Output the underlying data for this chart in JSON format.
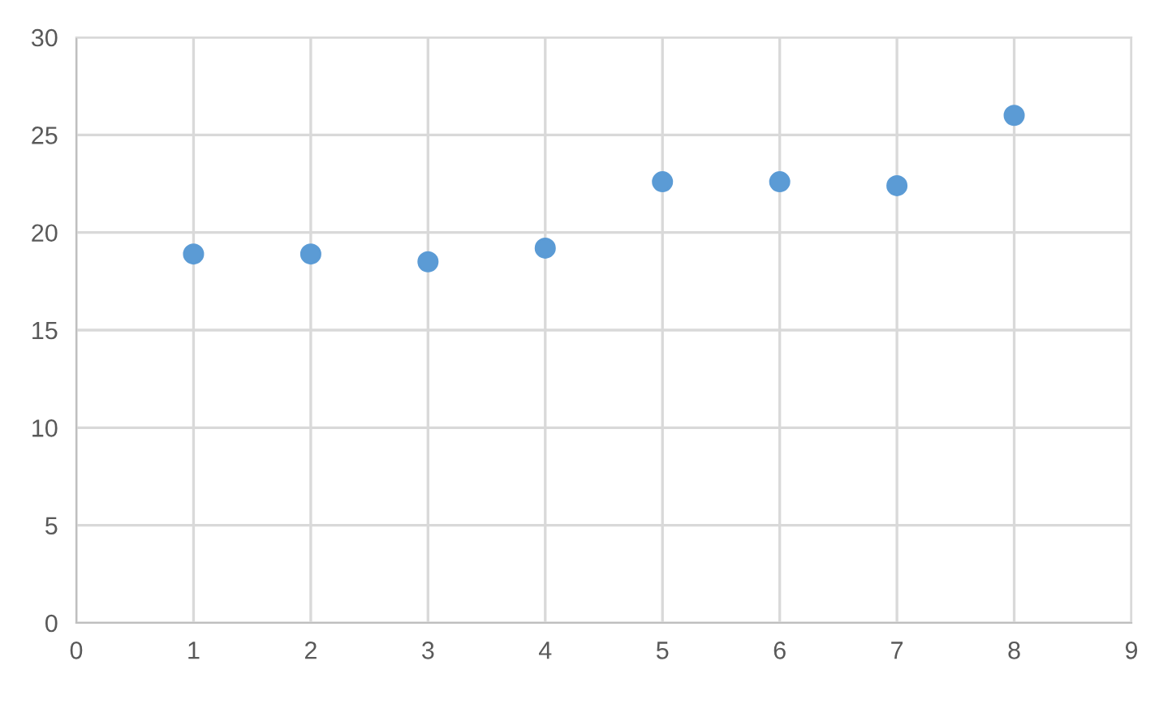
{
  "chart_data": {
    "type": "scatter",
    "x": [
      1,
      2,
      3,
      4,
      5,
      6,
      7,
      8
    ],
    "series": [
      {
        "color": "#5b9bd5",
        "values": [
          18.9,
          18.9,
          18.5,
          19.2,
          22.6,
          22.6,
          22.4,
          26.0
        ]
      }
    ],
    "xlim": [
      0,
      9
    ],
    "xticks": [
      0,
      1,
      2,
      3,
      4,
      5,
      6,
      7,
      8,
      9
    ],
    "ylim": [
      0,
      30
    ],
    "yticks": [
      0,
      5,
      10,
      15,
      20,
      25,
      30
    ],
    "grid": true,
    "marker": "circle"
  }
}
